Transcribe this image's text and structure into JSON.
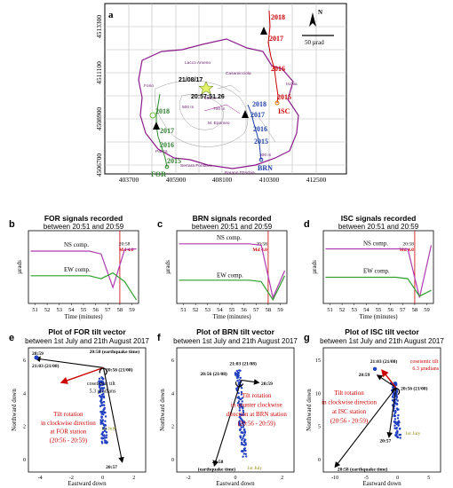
{
  "panel_a": {
    "letter": "a",
    "x_ticks": [
      "403700",
      "405900",
      "408100",
      "410300",
      "412500"
    ],
    "y_ticks": [
      "4513300",
      "4511100",
      "4508900",
      "4506700"
    ],
    "north": "N",
    "scale": "50 µrad",
    "places": [
      "Lacco Ameno",
      "Casamicciola",
      "Forio",
      "Ischia",
      "M. Epomeo",
      "Serrara Fontana",
      "Barano D'Ischia",
      "Panza"
    ],
    "contours": [
      "100 m",
      "500 m",
      "700 m",
      "300 m"
    ],
    "event_date": "21/08/17",
    "event_time": "20:57:51.26",
    "isc_years": [
      "2018",
      "2017",
      "2016",
      "2015"
    ],
    "brn_years": [
      "2018",
      "2017",
      "2016",
      "2015"
    ],
    "for_years": [
      "2018",
      "2017",
      "2016",
      "2015"
    ],
    "stations": {
      "isc": "ISC",
      "brn": "BRN",
      "for": "FOR"
    }
  },
  "panels_bcd": [
    {
      "letter": "b",
      "title1": "FOR signals recorded",
      "title2": "between 20:51 and 20:59",
      "ns": "NS comp.",
      "ew": "EW comp.",
      "eq1": "20:58",
      "eq2": "Md 4.0",
      "ylabel": "µrads",
      "xlabel": "Time (minutes)",
      "ticks": [
        "51",
        "52",
        "53",
        "54",
        "55",
        "56",
        "57",
        "58",
        "59"
      ]
    },
    {
      "letter": "c",
      "title1": "BRN signals recorded",
      "title2": "between 20:51 and 20:59",
      "ns": "NS comp.",
      "ew": "EW comp.",
      "eq1": "20:58",
      "eq2": "Md 4.0",
      "ylabel": "µrads",
      "xlabel": "Time (minutes)",
      "ticks": [
        "51",
        "52",
        "53",
        "54",
        "55",
        "56",
        "57",
        "58",
        "59"
      ]
    },
    {
      "letter": "d",
      "title1": "ISC signals recorded",
      "title2": "between 20:51 and 20:59",
      "ns": "NS comp.",
      "ew": "EW comp.",
      "eq1": "20:58",
      "eq2": "Md 4.0",
      "ylabel": "µrads",
      "xlabel": "Time (minutes)",
      "ticks": [
        "51",
        "52",
        "53",
        "54",
        "55",
        "56",
        "57",
        "58",
        "59"
      ]
    }
  ],
  "panels_efg": [
    {
      "letter": "e",
      "title1": "Plot of FOR tilt vector",
      "title2": "between 1st July and 21th August 2017",
      "ylabel": "Northward down",
      "xlabel": "Eastward down",
      "xticks": [
        "-4",
        "-2",
        "0",
        "2"
      ],
      "yticks": [
        "6",
        "4",
        "2",
        "0"
      ],
      "labels": {
        "t1": "20:59",
        "t2": "21:03 (21/08)",
        "t3": "20:58 (earthquake time)",
        "t4": "20:56 (21/08)",
        "t5": "20:57",
        "july": "1st July"
      },
      "note": [
        "coseismic tilt",
        "5.3 µradians"
      ],
      "rot": [
        "Tilt rotation",
        "in clockwise direction",
        "at FOR station",
        "(20:56 - 20:59)"
      ]
    },
    {
      "letter": "f",
      "title1": "Plot of BRN tilt vector",
      "title2": "between 1st July and 21th August 2017",
      "ylabel": "Northward down",
      "xlabel": "Eastward down",
      "xticks": [
        "-2",
        "0",
        "2"
      ],
      "yticks": [
        "6",
        "4",
        "2",
        "0"
      ],
      "labels": {
        "t1": "21:03 (21/08)",
        "t2": "20:56 (21/08)",
        "t3": "20:59",
        "t4": "20:58",
        "t5": "(earthquake time)",
        "july": "1st July"
      },
      "rot": [
        "Tilt rotation",
        "in counter clockwise",
        "direction at BRN station",
        "(20:56 - 20:59)"
      ]
    },
    {
      "letter": "g",
      "title1": "Plot of ISC tilt vector",
      "title2": "between 1st July and 21th August 2017",
      "ylabel": "Northward down",
      "xlabel": "Eastward down",
      "xticks": [
        "-10",
        "-5",
        "0",
        "5"
      ],
      "yticks": [
        "15",
        "10",
        "5",
        "0"
      ],
      "labels": {
        "t1": "21:03 (21/08)",
        "t2": "20:59",
        "t3": "20:56 (21/08)",
        "t4": "20:57",
        "t5": "20:58 (earthquake time)",
        "july": "1st July"
      },
      "note": [
        "coseismic tilt",
        "6.3 µradians"
      ],
      "rot": [
        "Tilt rotation",
        "in clockwise direction",
        "at ISC station",
        "(20:56 - 20:59)"
      ]
    }
  ]
}
